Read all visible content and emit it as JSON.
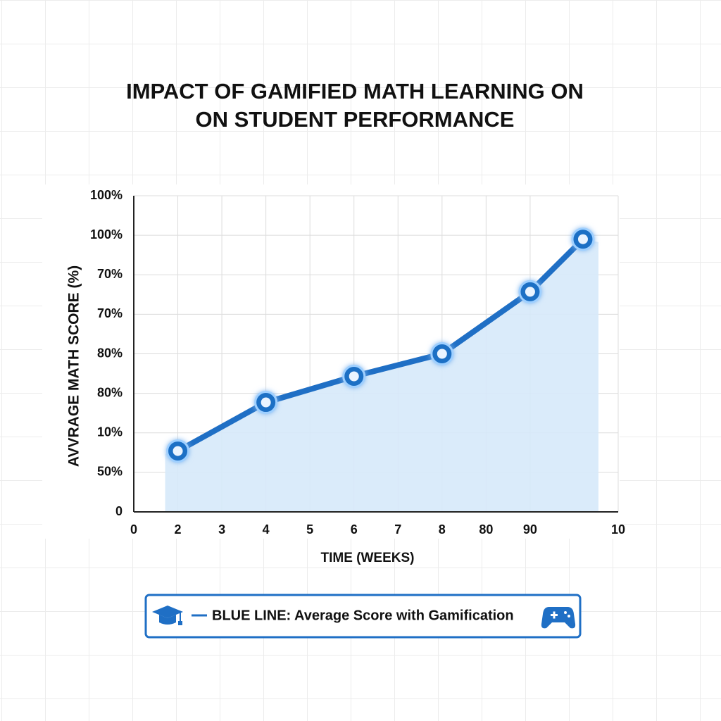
{
  "chart_data": {
    "type": "line",
    "title": [
      "IMPACT OF GAMIFIED MATH LEARNING ON",
      "ON STUDENT PERFORMANCE"
    ],
    "xlabel": "TIME (WEEKS)",
    "ylabel": "AVVRAGE MATH SCORE (%)",
    "x": [
      1,
      3,
      5,
      7,
      9,
      10.2
    ],
    "series": [
      {
        "name": "BLUE LINE: Average Score with Gamification",
        "color": "#1f6fc5",
        "values": [
          1.54,
          2.77,
          3.43,
          4.0,
          5.57,
          6.9
        ]
      }
    ],
    "xlim": [
      0,
      11
    ],
    "xticks": [
      0,
      {
        "value": 1,
        "label": "2"
      },
      {
        "value": 2,
        "label": "3"
      },
      {
        "value": 3,
        "label": "4"
      },
      {
        "value": 4,
        "label": "5"
      },
      {
        "value": 5,
        "label": "6"
      },
      {
        "value": 6,
        "label": "7"
      },
      {
        "value": 7,
        "label": "8"
      },
      {
        "value": 8,
        "label": "80"
      },
      {
        "value": 9,
        "label": "90"
      },
      {
        "value": 11,
        "label": "10"
      }
    ],
    "ylim": [
      0,
      8
    ],
    "yticks": [
      0,
      {
        "value": 1,
        "label": "50%"
      },
      {
        "value": 2,
        "label": "10%"
      },
      {
        "value": 3,
        "label": "80%"
      },
      {
        "value": 4,
        "label": "80%"
      },
      {
        "value": 5,
        "label": "70%"
      },
      {
        "value": 6,
        "label": "70%"
      },
      {
        "value": 7,
        "label": "100%"
      },
      {
        "value": 8,
        "label": "100%"
      }
    ],
    "grid": true,
    "area": true,
    "legend": "bottom"
  }
}
